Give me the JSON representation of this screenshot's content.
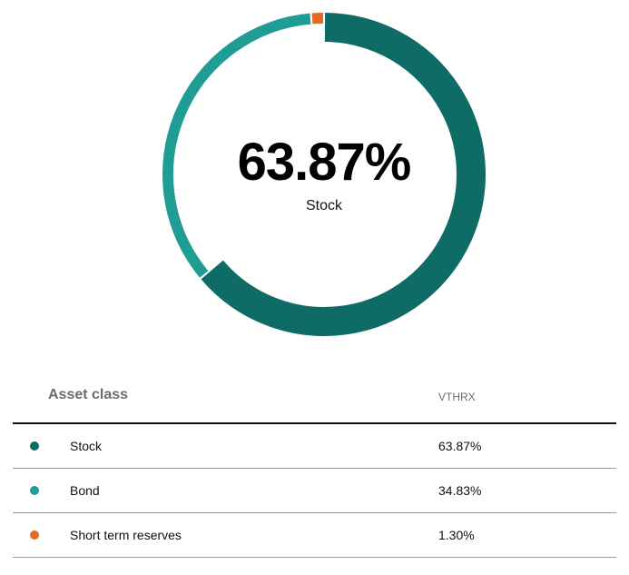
{
  "chart_data": {
    "type": "pie",
    "style": "donut",
    "categories": [
      "Stock",
      "Bond",
      "Short term reserves"
    ],
    "values": [
      63.87,
      34.83,
      1.3
    ],
    "colors": [
      "#0e6b66",
      "#1f9c94",
      "#e5691e"
    ],
    "center_value": "63.87%",
    "center_label": "Stock"
  },
  "table": {
    "header_label": "Asset class",
    "header_column": "VTHRX",
    "rows": [
      {
        "label": "Stock",
        "value": "63.87%",
        "color": "#0e6b66"
      },
      {
        "label": "Bond",
        "value": "34.83%",
        "color": "#1f9c94"
      },
      {
        "label": "Short term reserves",
        "value": "1.30%",
        "color": "#e5691e"
      }
    ]
  }
}
